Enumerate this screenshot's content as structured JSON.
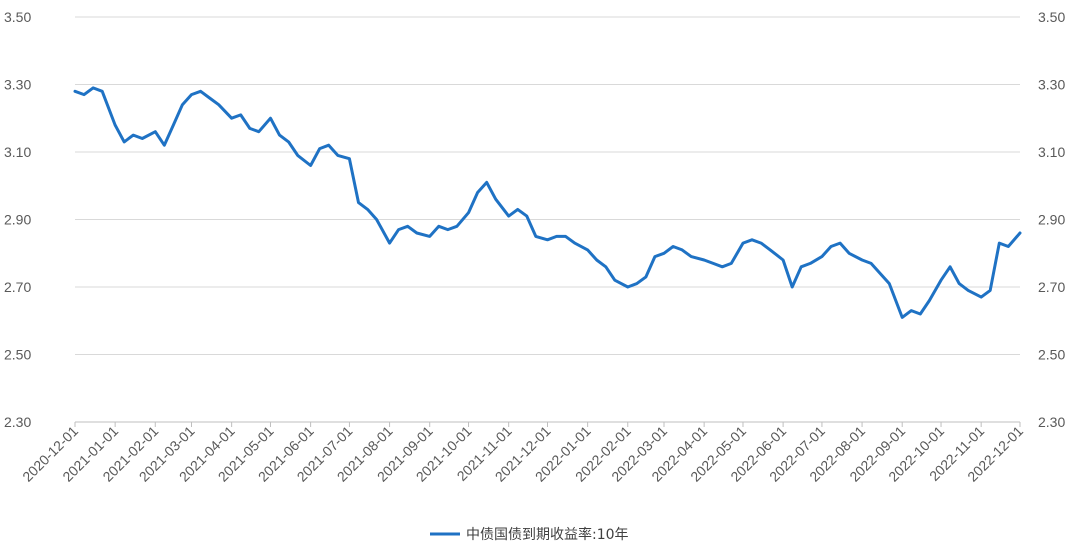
{
  "chart_data": {
    "type": "line",
    "title": "",
    "xlabel": "",
    "ylabel": "",
    "ylim": [
      2.3,
      3.5
    ],
    "y_ticks": [
      "3.50",
      "3.30",
      "3.10",
      "2.90",
      "2.70",
      "2.50",
      "2.30"
    ],
    "y_axis_secondary": true,
    "grid": "horizontal",
    "legend_position": "bottom",
    "x_ticks": [
      "2020-12-01",
      "2021-01-01",
      "2021-02-01",
      "2021-03-01",
      "2021-04-01",
      "2021-05-01",
      "2021-06-01",
      "2021-07-01",
      "2021-08-01",
      "2021-09-01",
      "2021-10-01",
      "2021-11-01",
      "2021-12-01",
      "2022-01-01",
      "2022-02-01",
      "2022-03-01",
      "2022-04-01",
      "2022-05-01",
      "2022-06-01",
      "2022-07-01",
      "2022-08-01",
      "2022-09-01",
      "2022-10-01",
      "2022-11-01",
      "2022-12-01"
    ],
    "x": [
      "2020-12-01",
      "2020-12-08",
      "2020-12-15",
      "2020-12-22",
      "2021-01-01",
      "2021-01-08",
      "2021-01-15",
      "2021-01-22",
      "2021-02-01",
      "2021-02-08",
      "2021-02-15",
      "2021-02-22",
      "2021-03-01",
      "2021-03-08",
      "2021-03-15",
      "2021-03-22",
      "2021-04-01",
      "2021-04-08",
      "2021-04-15",
      "2021-04-22",
      "2021-05-01",
      "2021-05-08",
      "2021-05-15",
      "2021-05-22",
      "2021-06-01",
      "2021-06-08",
      "2021-06-15",
      "2021-06-22",
      "2021-07-01",
      "2021-07-08",
      "2021-07-15",
      "2021-07-22",
      "2021-08-01",
      "2021-08-08",
      "2021-08-15",
      "2021-08-22",
      "2021-09-01",
      "2021-09-08",
      "2021-09-15",
      "2021-09-22",
      "2021-10-01",
      "2021-10-08",
      "2021-10-15",
      "2021-10-22",
      "2021-11-01",
      "2021-11-08",
      "2021-11-15",
      "2021-11-22",
      "2021-12-01",
      "2021-12-08",
      "2021-12-15",
      "2021-12-22",
      "2022-01-01",
      "2022-01-08",
      "2022-01-15",
      "2022-01-22",
      "2022-02-01",
      "2022-02-08",
      "2022-02-15",
      "2022-02-22",
      "2022-03-01",
      "2022-03-08",
      "2022-03-15",
      "2022-03-22",
      "2022-04-01",
      "2022-04-08",
      "2022-04-15",
      "2022-04-22",
      "2022-05-01",
      "2022-05-08",
      "2022-05-15",
      "2022-05-22",
      "2022-06-01",
      "2022-06-08",
      "2022-06-15",
      "2022-06-22",
      "2022-07-01",
      "2022-07-08",
      "2022-07-15",
      "2022-07-22",
      "2022-08-01",
      "2022-08-08",
      "2022-08-15",
      "2022-08-22",
      "2022-09-01",
      "2022-09-08",
      "2022-09-15",
      "2022-09-22",
      "2022-10-01",
      "2022-10-08",
      "2022-10-15",
      "2022-10-22",
      "2022-11-01",
      "2022-11-08",
      "2022-11-15",
      "2022-11-22",
      "2022-12-01"
    ],
    "series": [
      {
        "name": "中债国债到期收益率:10年",
        "color": "#1f72c4",
        "values": [
          3.28,
          3.27,
          3.29,
          3.28,
          3.18,
          3.13,
          3.15,
          3.14,
          3.16,
          3.12,
          3.18,
          3.24,
          3.27,
          3.28,
          3.26,
          3.24,
          3.2,
          3.21,
          3.17,
          3.16,
          3.2,
          3.15,
          3.13,
          3.09,
          3.06,
          3.11,
          3.12,
          3.09,
          3.08,
          2.95,
          2.93,
          2.9,
          2.83,
          2.87,
          2.88,
          2.86,
          2.85,
          2.88,
          2.87,
          2.88,
          2.92,
          2.98,
          3.01,
          2.96,
          2.91,
          2.93,
          2.91,
          2.85,
          2.84,
          2.85,
          2.85,
          2.83,
          2.81,
          2.78,
          2.76,
          2.72,
          2.7,
          2.71,
          2.73,
          2.79,
          2.8,
          2.82,
          2.81,
          2.79,
          2.78,
          2.77,
          2.76,
          2.77,
          2.83,
          2.84,
          2.83,
          2.81,
          2.78,
          2.7,
          2.76,
          2.77,
          2.79,
          2.82,
          2.83,
          2.8,
          2.78,
          2.77,
          2.74,
          2.71,
          2.61,
          2.63,
          2.62,
          2.66,
          2.72,
          2.76,
          2.71,
          2.69,
          2.67,
          2.69,
          2.83,
          2.82,
          2.86
        ]
      }
    ]
  },
  "legend": {
    "label": "中债国债到期收益率:10年"
  }
}
